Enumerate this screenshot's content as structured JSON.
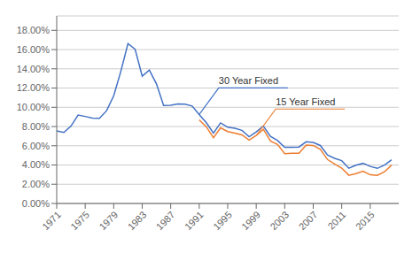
{
  "chart_data": {
    "type": "line",
    "x": [
      1971,
      1972,
      1973,
      1974,
      1975,
      1976,
      1977,
      1978,
      1979,
      1980,
      1981,
      1982,
      1983,
      1984,
      1985,
      1986,
      1987,
      1988,
      1989,
      1990,
      1991,
      1992,
      1993,
      1994,
      1995,
      1996,
      1997,
      1998,
      1999,
      2000,
      2001,
      2002,
      2003,
      2004,
      2005,
      2006,
      2007,
      2008,
      2009,
      2010,
      2011,
      2012,
      2013,
      2014,
      2015,
      2016,
      2017,
      2018
    ],
    "series": [
      {
        "name": "30 Year Fixed",
        "color": "#4472C4",
        "values": [
          7.54,
          7.38,
          8.04,
          9.19,
          9.05,
          8.87,
          8.85,
          9.64,
          11.2,
          13.74,
          16.63,
          16.04,
          13.24,
          13.88,
          12.43,
          10.19,
          10.21,
          10.34,
          10.32,
          10.13,
          9.25,
          8.39,
          7.31,
          8.38,
          7.93,
          7.81,
          7.6,
          6.94,
          7.44,
          8.05,
          6.97,
          6.54,
          5.83,
          5.84,
          5.87,
          6.41,
          6.34,
          6.03,
          5.04,
          4.69,
          4.45,
          3.66,
          3.98,
          4.17,
          3.85,
          3.65,
          3.99,
          4.54
        ]
      },
      {
        "name": "15 Year Fixed",
        "color": "#ED7D31",
        "values": [
          null,
          null,
          null,
          null,
          null,
          null,
          null,
          null,
          null,
          null,
          null,
          null,
          null,
          null,
          null,
          null,
          null,
          null,
          null,
          null,
          8.69,
          7.96,
          6.83,
          7.86,
          7.48,
          7.32,
          7.13,
          6.59,
          7.06,
          7.72,
          6.5,
          6.13,
          5.17,
          5.21,
          5.21,
          6.07,
          6.03,
          5.62,
          4.57,
          4.1,
          3.68,
          2.93,
          3.11,
          3.36,
          2.98,
          2.93,
          3.29,
          3.99
        ]
      }
    ],
    "xlim": [
      1971,
      2019
    ],
    "xticks": [
      1971,
      1975,
      1979,
      1983,
      1987,
      1991,
      1995,
      1999,
      2003,
      2007,
      2011,
      2015
    ],
    "ylim": [
      0,
      19.5
    ],
    "yticks": [
      {
        "value": 0,
        "label": "0.00%"
      },
      {
        "value": 2,
        "label": "2.00%"
      },
      {
        "value": 4,
        "label": "4.00%"
      },
      {
        "value": 6,
        "label": "6.00%"
      },
      {
        "value": 8,
        "label": "8.00%"
      },
      {
        "value": 10,
        "label": "10.00%"
      },
      {
        "value": 12,
        "label": "12.00%"
      },
      {
        "value": 14,
        "label": "14.00%"
      },
      {
        "value": 16,
        "label": "16.00%"
      },
      {
        "value": 18,
        "label": "18.00%"
      }
    ],
    "grid": true
  }
}
